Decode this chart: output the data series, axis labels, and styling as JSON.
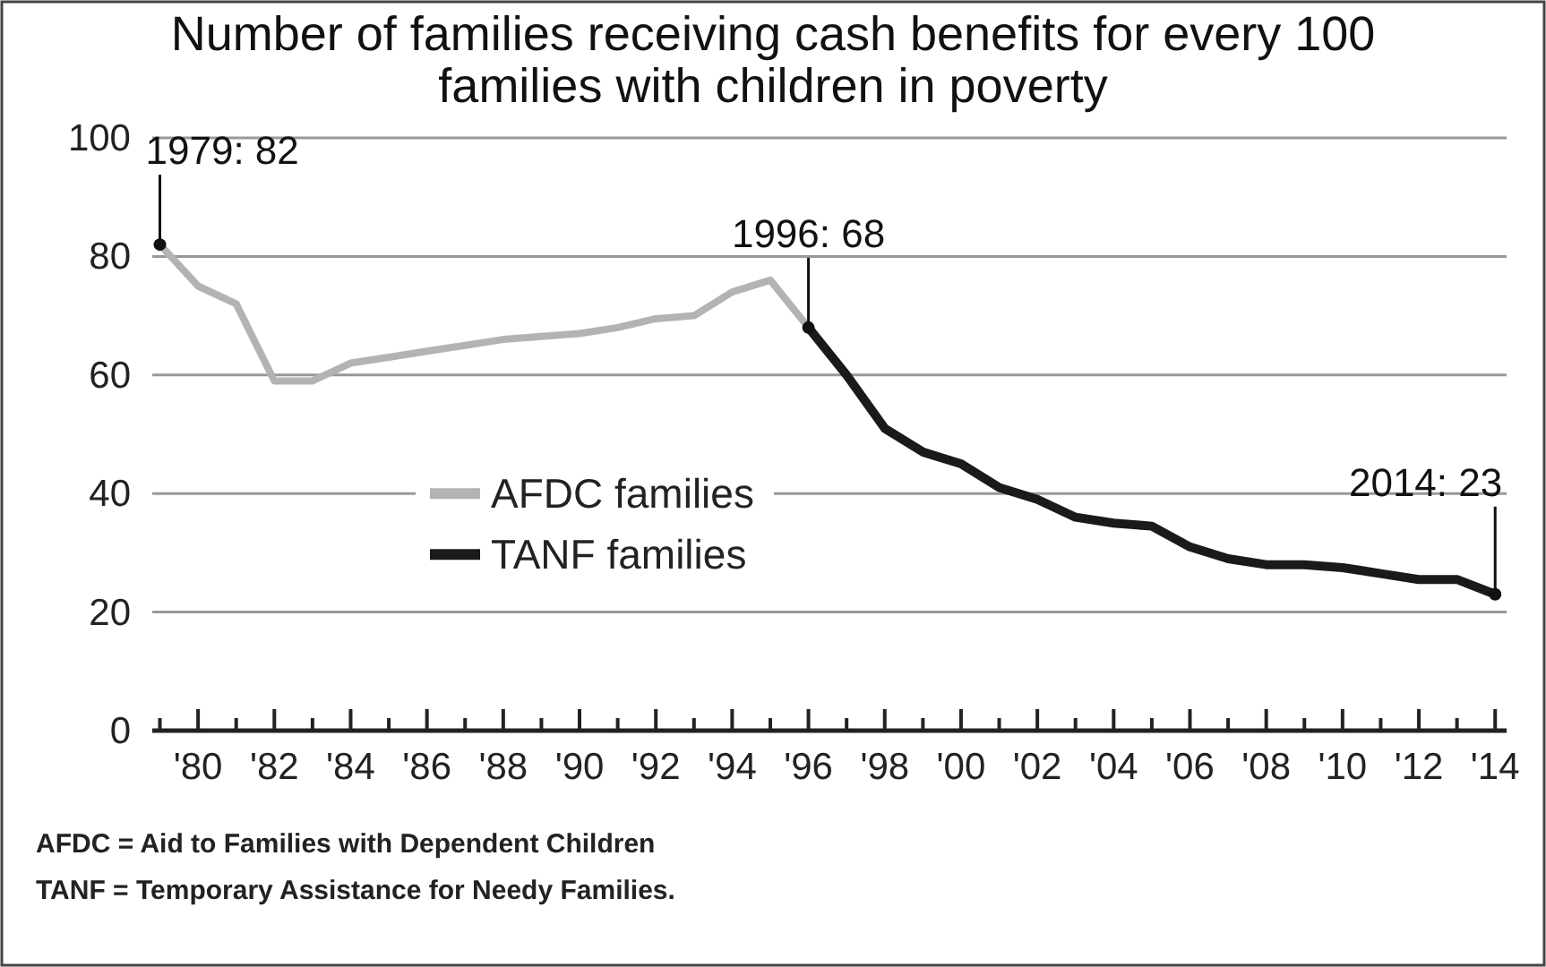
{
  "chart_data": {
    "type": "line",
    "title": "Number of families receiving cash benefits for every 100 families with children in poverty",
    "series": [
      {
        "name": "AFDC families",
        "color": "#b3b3b3",
        "x": [
          1979,
          1980,
          1981,
          1982,
          1983,
          1984,
          1985,
          1986,
          1987,
          1988,
          1989,
          1990,
          1991,
          1992,
          1993,
          1994,
          1995,
          1996
        ],
        "values": [
          82,
          75,
          72,
          59,
          59,
          62,
          63,
          64,
          65,
          66,
          66.5,
          67,
          68,
          69.5,
          70,
          74,
          76,
          68
        ]
      },
      {
        "name": "TANF families",
        "color": "#1a1a1a",
        "x": [
          1996,
          1997,
          1998,
          1999,
          2000,
          2001,
          2002,
          2003,
          2004,
          2005,
          2006,
          2007,
          2008,
          2009,
          2010,
          2011,
          2012,
          2013,
          2014
        ],
        "values": [
          68,
          60,
          51,
          47,
          45,
          41,
          39,
          36,
          35,
          34.5,
          31,
          29,
          28,
          28,
          27.5,
          26.5,
          25.5,
          25.5,
          23
        ]
      }
    ],
    "xlim": [
      1978.8,
      2014.3
    ],
    "xticks": [
      {
        "value": 1979,
        "label": null
      },
      {
        "value": 1980,
        "label": "'80"
      },
      {
        "value": 1981,
        "label": null
      },
      {
        "value": 1982,
        "label": "'82"
      },
      {
        "value": 1983,
        "label": null
      },
      {
        "value": 1984,
        "label": "'84"
      },
      {
        "value": 1985,
        "label": null
      },
      {
        "value": 1986,
        "label": "'86"
      },
      {
        "value": 1987,
        "label": null
      },
      {
        "value": 1988,
        "label": "'88"
      },
      {
        "value": 1989,
        "label": null
      },
      {
        "value": 1990,
        "label": "'90"
      },
      {
        "value": 1991,
        "label": null
      },
      {
        "value": 1992,
        "label": "'92"
      },
      {
        "value": 1993,
        "label": null
      },
      {
        "value": 1994,
        "label": "'94"
      },
      {
        "value": 1995,
        "label": null
      },
      {
        "value": 1996,
        "label": "'96"
      },
      {
        "value": 1997,
        "label": null
      },
      {
        "value": 1998,
        "label": "'98"
      },
      {
        "value": 1999,
        "label": null
      },
      {
        "value": 2000,
        "label": "'00"
      },
      {
        "value": 2001,
        "label": null
      },
      {
        "value": 2002,
        "label": "'02"
      },
      {
        "value": 2003,
        "label": null
      },
      {
        "value": 2004,
        "label": "'04"
      },
      {
        "value": 2005,
        "label": null
      },
      {
        "value": 2006,
        "label": "'06"
      },
      {
        "value": 2007,
        "label": null
      },
      {
        "value": 2008,
        "label": "'08"
      },
      {
        "value": 2009,
        "label": null
      },
      {
        "value": 2010,
        "label": "'10"
      },
      {
        "value": 2011,
        "label": null
      },
      {
        "value": 2012,
        "label": "'12"
      },
      {
        "value": 2013,
        "label": null
      },
      {
        "value": 2014,
        "label": "'14"
      }
    ],
    "ylim": [
      0,
      100
    ],
    "yticks": [
      0,
      20,
      40,
      60,
      80,
      100
    ],
    "grid": "y",
    "legend": "left",
    "marker": "none",
    "line_style": "solid",
    "annotations": [
      {
        "text": "1979: 82",
        "x": 1979,
        "y": 82
      },
      {
        "text": "1996: 68",
        "x": 1996,
        "y": 68
      },
      {
        "text": "2014: 23",
        "x": 2014,
        "y": 23
      },
      "AFDC = Aid to Families with Dependent Children",
      "TANF = Temporary Assistance for Needy Families."
    ]
  }
}
